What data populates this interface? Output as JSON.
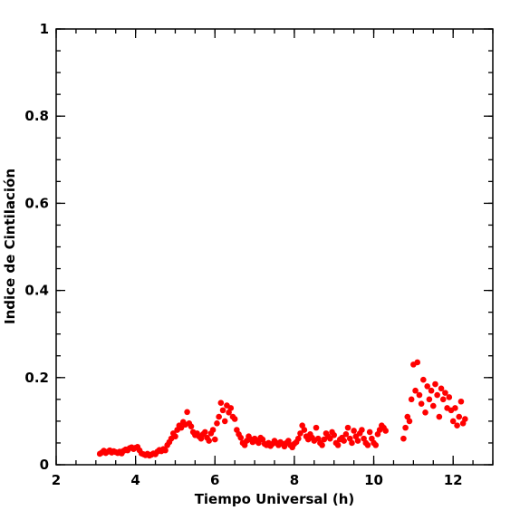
{
  "chart_data": {
    "type": "scatter",
    "xlabel": "Tiempo Universal (h)",
    "ylabel": "Indice de Cintilación",
    "xlim": [
      2,
      13
    ],
    "ylim": [
      0,
      1
    ],
    "xticks": [
      2,
      4,
      6,
      8,
      10,
      12
    ],
    "yticks": [
      0,
      0.2,
      0.4,
      0.6,
      0.8,
      1
    ],
    "x": [
      3.1,
      3.15,
      3.2,
      3.25,
      3.3,
      3.35,
      3.4,
      3.45,
      3.5,
      3.55,
      3.6,
      3.65,
      3.7,
      3.75,
      3.8,
      3.85,
      3.9,
      3.95,
      4.0,
      4.05,
      4.1,
      4.15,
      4.2,
      4.25,
      4.3,
      4.35,
      4.4,
      4.45,
      4.5,
      4.55,
      4.6,
      4.65,
      4.7,
      4.75,
      4.8,
      4.85,
      4.9,
      4.95,
      5.0,
      5.05,
      5.1,
      5.15,
      5.2,
      5.25,
      5.3,
      5.35,
      5.4,
      5.45,
      5.5,
      5.55,
      5.6,
      5.65,
      5.7,
      5.75,
      5.8,
      5.85,
      5.9,
      5.95,
      6.0,
      6.05,
      6.1,
      6.15,
      6.2,
      6.25,
      6.3,
      6.35,
      6.4,
      6.45,
      6.5,
      6.55,
      6.6,
      6.65,
      6.7,
      6.75,
      6.8,
      6.85,
      6.9,
      6.95,
      7.0,
      7.05,
      7.1,
      7.15,
      7.2,
      7.25,
      7.3,
      7.35,
      7.4,
      7.45,
      7.5,
      7.55,
      7.6,
      7.65,
      7.7,
      7.75,
      7.8,
      7.85,
      7.9,
      7.95,
      8.0,
      8.05,
      8.1,
      8.15,
      8.2,
      8.25,
      8.3,
      8.35,
      8.4,
      8.45,
      8.5,
      8.55,
      8.6,
      8.65,
      8.7,
      8.75,
      8.8,
      8.85,
      8.9,
      8.95,
      9.0,
      9.05,
      9.1,
      9.15,
      9.2,
      9.25,
      9.3,
      9.35,
      9.4,
      9.45,
      9.5,
      9.55,
      9.6,
      9.65,
      9.7,
      9.75,
      9.8,
      9.85,
      9.9,
      9.95,
      10.0,
      10.05,
      10.1,
      10.15,
      10.2,
      10.25,
      10.3,
      10.75,
      10.8,
      10.85,
      10.9,
      10.95,
      11.0,
      11.05,
      11.1,
      11.15,
      11.2,
      11.25,
      11.3,
      11.35,
      11.4,
      11.45,
      11.5,
      11.55,
      11.6,
      11.65,
      11.7,
      11.75,
      11.8,
      11.85,
      11.9,
      11.95,
      12.0,
      12.05,
      12.1,
      12.15,
      12.2,
      12.25,
      12.3
    ],
    "series": [
      {
        "color": "#ff0000",
        "values": [
          0.025,
          0.028,
          0.032,
          0.027,
          0.03,
          0.033,
          0.028,
          0.031,
          0.029,
          0.027,
          0.03,
          0.026,
          0.032,
          0.035,
          0.033,
          0.038,
          0.04,
          0.036,
          0.039,
          0.041,
          0.033,
          0.026,
          0.024,
          0.022,
          0.025,
          0.021,
          0.023,
          0.026,
          0.024,
          0.03,
          0.034,
          0.031,
          0.036,
          0.033,
          0.045,
          0.052,
          0.06,
          0.072,
          0.065,
          0.08,
          0.09,
          0.085,
          0.098,
          0.092,
          0.121,
          0.095,
          0.088,
          0.075,
          0.068,
          0.072,
          0.065,
          0.06,
          0.07,
          0.075,
          0.062,
          0.055,
          0.072,
          0.08,
          0.058,
          0.095,
          0.11,
          0.142,
          0.125,
          0.1,
          0.136,
          0.12,
          0.13,
          0.11,
          0.105,
          0.08,
          0.07,
          0.062,
          0.05,
          0.045,
          0.055,
          0.065,
          0.058,
          0.052,
          0.06,
          0.055,
          0.05,
          0.062,
          0.058,
          0.048,
          0.045,
          0.05,
          0.043,
          0.048,
          0.055,
          0.05,
          0.045,
          0.052,
          0.048,
          0.042,
          0.05,
          0.055,
          0.045,
          0.04,
          0.048,
          0.052,
          0.06,
          0.072,
          0.09,
          0.08,
          0.065,
          0.058,
          0.07,
          0.062,
          0.055,
          0.085,
          0.06,
          0.05,
          0.045,
          0.058,
          0.072,
          0.065,
          0.06,
          0.075,
          0.068,
          0.05,
          0.045,
          0.058,
          0.062,
          0.055,
          0.07,
          0.085,
          0.06,
          0.05,
          0.078,
          0.065,
          0.055,
          0.072,
          0.08,
          0.06,
          0.05,
          0.045,
          0.075,
          0.06,
          0.05,
          0.045,
          0.07,
          0.08,
          0.09,
          0.085,
          0.078,
          0.06,
          0.085,
          0.11,
          0.1,
          0.15,
          0.23,
          0.17,
          0.235,
          0.16,
          0.14,
          0.195,
          0.12,
          0.18,
          0.15,
          0.17,
          0.135,
          0.185,
          0.16,
          0.11,
          0.175,
          0.15,
          0.165,
          0.13,
          0.155,
          0.125,
          0.1,
          0.13,
          0.09,
          0.11,
          0.145,
          0.095,
          0.105
        ]
      }
    ]
  }
}
